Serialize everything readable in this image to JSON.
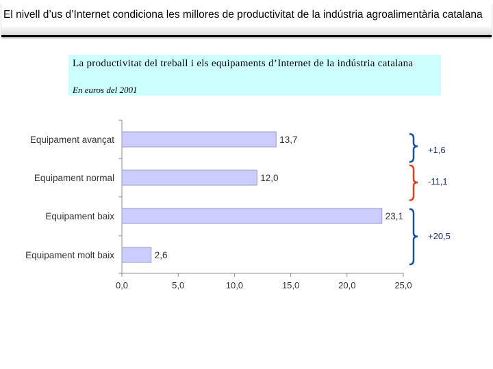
{
  "header": {
    "title": "El nivell d’us d’Internet condiciona les millores de productivitat de la indústria agroalimentària catalana"
  },
  "subtitle": {
    "text": "La productivitat del treball i els equipaments d’Internet de la indústria catalana",
    "units": "En euros del 2001"
  },
  "chart_data": {
    "type": "bar",
    "orientation": "horizontal",
    "categories": [
      "Equipament avançat",
      "Equipament normal",
      "Equipament baix",
      "Equipament molt baix"
    ],
    "values": [
      13.7,
      12.0,
      23.1,
      2.6
    ],
    "value_labels": [
      "13,7",
      "12,0",
      "23,1",
      "2,6"
    ],
    "xlim": [
      0,
      25
    ],
    "x_ticks": [
      0,
      5,
      10,
      15,
      20,
      25
    ],
    "x_tick_labels": [
      "0,0",
      "5,0",
      "10,0",
      "15,0",
      "20,0",
      "25,0"
    ],
    "grid": false,
    "bar_color": "#ccccff",
    "bar_edge_color": "#9999cc",
    "annotations": [
      {
        "text": "+1,6",
        "between": [
          "Equipament avançat",
          "Equipament normal"
        ],
        "color": "#1f4fa0"
      },
      {
        "text": "-11,1",
        "between": [
          "Equipament normal",
          "Equipament baix"
        ],
        "color": "#e0401a"
      },
      {
        "text": "+20,5",
        "between": [
          "Equipament baix",
          "Equipament molt baix"
        ],
        "color": "#1f4fa0"
      }
    ],
    "title": "",
    "xlabel": "",
    "ylabel": ""
  }
}
